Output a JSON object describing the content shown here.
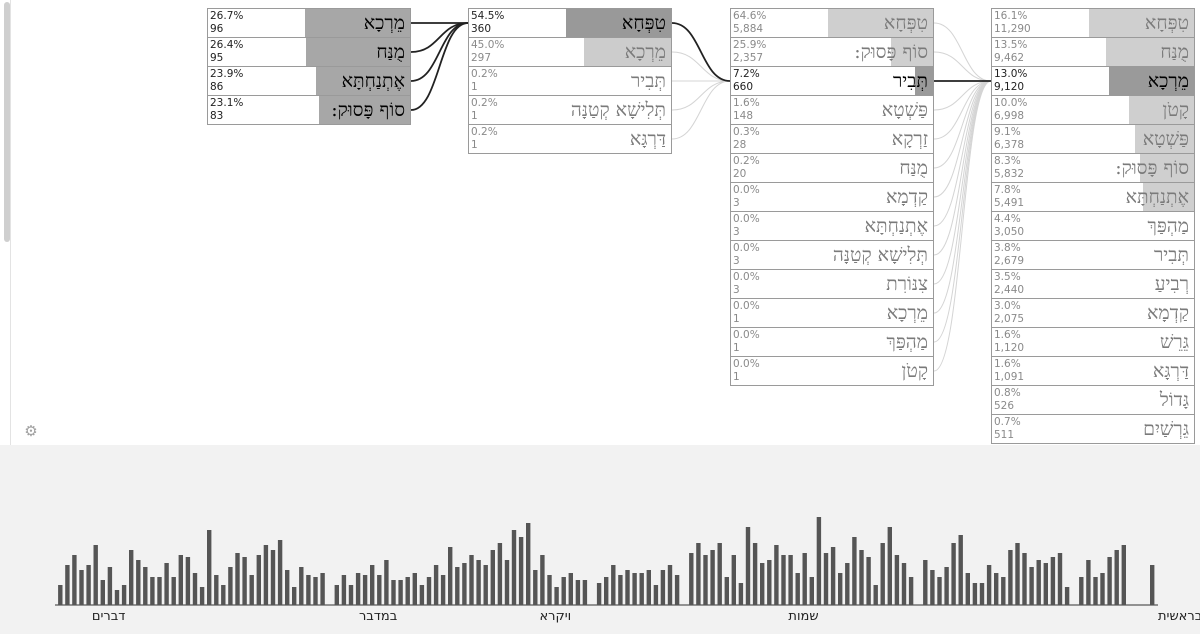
{
  "columns": [
    {
      "id": "col1",
      "cells": [
        {
          "pct": "26.7%",
          "count": "96",
          "word": "מֵרְכָא",
          "share": 0.267,
          "shade": "#a7a7a7"
        },
        {
          "pct": "26.4%",
          "count": "95",
          "word": "מֻנַּח",
          "share": 0.264,
          "shade": "#a7a7a7"
        },
        {
          "pct": "23.9%",
          "count": "86",
          "word": "אֶתְנַחְתָּא",
          "share": 0.239,
          "shade": "#a7a7a7"
        },
        {
          "pct": "23.1%",
          "count": "83",
          "word": "סוֹף פָּסוּק:",
          "share": 0.231,
          "shade": "#a7a7a7"
        }
      ]
    },
    {
      "id": "col2",
      "cells": [
        {
          "pct": "54.5%",
          "count": "360",
          "word": "טִפְּחָא",
          "share": 0.545,
          "shade": "#999999"
        },
        {
          "pct": "45.0%",
          "count": "297",
          "word": "מֵרְכָא",
          "share": 0.45,
          "shade": "#cccccc",
          "faded": true
        },
        {
          "pct": "0.2%",
          "count": "1",
          "word": "תְּבִיר",
          "share": 0.002,
          "shade": "#cccccc",
          "faded": true
        },
        {
          "pct": "0.2%",
          "count": "1",
          "word": "תְּלִישָׁא קְטַנָּה",
          "share": 0.002,
          "shade": "#cccccc",
          "faded": true
        },
        {
          "pct": "0.2%",
          "count": "1",
          "word": "דַּרְגָּא",
          "share": 0.002,
          "shade": "#cccccc",
          "faded": true
        }
      ]
    },
    {
      "id": "col3",
      "cells": [
        {
          "pct": "64.6%",
          "count": "5,884",
          "word": "טִפְּחָא",
          "share": 0.646,
          "shade": "#cfcfcf",
          "faded": true
        },
        {
          "pct": "25.9%",
          "count": "2,357",
          "word": "סוֹף פָּסוּק:",
          "share": 0.259,
          "shade": "#cfcfcf",
          "faded": true
        },
        {
          "pct": "7.2%",
          "count": "660",
          "word": "תְּבִיר",
          "share": 0.072,
          "shade": "#9a9a9a"
        },
        {
          "pct": "1.6%",
          "count": "148",
          "word": "פַּשְׁטָא",
          "share": 0.016,
          "shade": "#cfcfcf",
          "faded": true
        },
        {
          "pct": "0.3%",
          "count": "28",
          "word": "זַרְקָא",
          "share": 0.003,
          "shade": "#cfcfcf",
          "faded": true
        },
        {
          "pct": "0.2%",
          "count": "20",
          "word": "מֻנַּח",
          "share": 0.002,
          "shade": "#cfcfcf",
          "faded": true
        },
        {
          "pct": "0.0%",
          "count": "3",
          "word": "קַדְמָא",
          "share": 0.0,
          "shade": "#cfcfcf",
          "faded": true
        },
        {
          "pct": "0.0%",
          "count": "3",
          "word": "אֶתְנַחְתָּא",
          "share": 0.0,
          "shade": "#cfcfcf",
          "faded": true
        },
        {
          "pct": "0.0%",
          "count": "3",
          "word": "תְּלִישָׁא קְטַנָּה",
          "share": 0.0,
          "shade": "#cfcfcf",
          "faded": true
        },
        {
          "pct": "0.0%",
          "count": "3",
          "word": "צִנּוֹרִת",
          "share": 0.0,
          "shade": "#cfcfcf",
          "faded": true
        },
        {
          "pct": "0.0%",
          "count": "1",
          "word": "מֵרְכָא",
          "share": 0.0,
          "shade": "#cfcfcf",
          "faded": true
        },
        {
          "pct": "0.0%",
          "count": "1",
          "word": "מַהְפַּךְ",
          "share": 0.0,
          "shade": "#cfcfcf",
          "faded": true
        },
        {
          "pct": "0.0%",
          "count": "1",
          "word": "קָטֹן",
          "share": 0.0,
          "shade": "#cfcfcf",
          "faded": true
        }
      ]
    },
    {
      "id": "col4",
      "cells": [
        {
          "pct": "16.1%",
          "count": "11,290",
          "word": "טִפְּחָא",
          "share": 0.161,
          "shade": "#cfcfcf",
          "faded": true
        },
        {
          "pct": "13.5%",
          "count": "9,462",
          "word": "מֻנַּח",
          "share": 0.135,
          "shade": "#cfcfcf",
          "faded": true
        },
        {
          "pct": "13.0%",
          "count": "9,120",
          "word": "מֵרְכָא",
          "share": 0.13,
          "shade": "#9a9a9a"
        },
        {
          "pct": "10.0%",
          "count": "6,998",
          "word": "קָטֹן",
          "share": 0.1,
          "shade": "#cfcfcf",
          "faded": true
        },
        {
          "pct": "9.1%",
          "count": "6,378",
          "word": "פַּשְׁטָא",
          "share": 0.091,
          "shade": "#cfcfcf",
          "faded": true
        },
        {
          "pct": "8.3%",
          "count": "5,832",
          "word": "סוֹף פָּסוּק:",
          "share": 0.083,
          "shade": "#cfcfcf",
          "faded": true
        },
        {
          "pct": "7.8%",
          "count": "5,491",
          "word": "אֶתְנַחְתָּא",
          "share": 0.078,
          "shade": "#cfcfcf",
          "faded": true
        },
        {
          "pct": "4.4%",
          "count": "3,050",
          "word": "מַהְפַּךְ",
          "share": 0.044,
          "shade": "#cfcfcf",
          "faded": true
        },
        {
          "pct": "3.8%",
          "count": "2,679",
          "word": "תְּבִיר",
          "share": 0.038,
          "shade": "#cfcfcf",
          "faded": true
        },
        {
          "pct": "3.5%",
          "count": "2,440",
          "word": "רְבִיעַ",
          "share": 0.035,
          "shade": "#cfcfcf",
          "faded": true
        },
        {
          "pct": "3.0%",
          "count": "2,075",
          "word": "קַדְמָא",
          "share": 0.03,
          "shade": "#cfcfcf",
          "faded": true
        },
        {
          "pct": "1.6%",
          "count": "1,120",
          "word": "גֵּרֵשׁ",
          "share": 0.016,
          "shade": "#cfcfcf",
          "faded": true
        },
        {
          "pct": "1.6%",
          "count": "1,091",
          "word": "דַּרְגָּא",
          "share": 0.016,
          "shade": "#cfcfcf",
          "faded": true
        },
        {
          "pct": "0.8%",
          "count": "526",
          "word": "גָּדוֹל",
          "share": 0.008,
          "shade": "#cfcfcf",
          "faded": true
        },
        {
          "pct": "0.7%",
          "count": "511",
          "word": "גֵּרְשַׁיִם",
          "share": 0.007,
          "shade": "#cfcfcf",
          "faded": true
        }
      ]
    }
  ],
  "links": [
    {
      "from": [
        "col1",
        0
      ],
      "to": [
        "col2",
        0
      ],
      "strong": true
    },
    {
      "from": [
        "col1",
        1
      ],
      "to": [
        "col2",
        0
      ],
      "strong": true
    },
    {
      "from": [
        "col1",
        2
      ],
      "to": [
        "col2",
        0
      ],
      "strong": true
    },
    {
      "from": [
        "col1",
        3
      ],
      "to": [
        "col2",
        0
      ],
      "strong": true
    },
    {
      "from": [
        "col2",
        0
      ],
      "to": [
        "col3",
        2
      ],
      "strong": true
    },
    {
      "from": [
        "col2",
        1
      ],
      "to": [
        "col3",
        2
      ],
      "strong": false
    },
    {
      "from": [
        "col2",
        2
      ],
      "to": [
        "col3",
        2
      ],
      "strong": false
    },
    {
      "from": [
        "col2",
        3
      ],
      "to": [
        "col3",
        2
      ],
      "strong": false
    },
    {
      "from": [
        "col2",
        4
      ],
      "to": [
        "col3",
        2
      ],
      "strong": false
    },
    {
      "from": [
        "col3",
        2
      ],
      "to": [
        "col4",
        2
      ],
      "strong": true
    },
    {
      "from": [
        "col3",
        0
      ],
      "to": [
        "col4",
        2
      ],
      "strong": false
    },
    {
      "from": [
        "col3",
        1
      ],
      "to": [
        "col4",
        2
      ],
      "strong": false
    },
    {
      "from": [
        "col3",
        3
      ],
      "to": [
        "col4",
        2
      ],
      "strong": false
    },
    {
      "from": [
        "col3",
        4
      ],
      "to": [
        "col4",
        2
      ],
      "strong": false
    },
    {
      "from": [
        "col3",
        5
      ],
      "to": [
        "col4",
        2
      ],
      "strong": false
    },
    {
      "from": [
        "col3",
        6
      ],
      "to": [
        "col4",
        2
      ],
      "strong": false
    },
    {
      "from": [
        "col3",
        7
      ],
      "to": [
        "col4",
        2
      ],
      "strong": false
    },
    {
      "from": [
        "col3",
        8
      ],
      "to": [
        "col4",
        2
      ],
      "strong": false
    },
    {
      "from": [
        "col3",
        9
      ],
      "to": [
        "col4",
        2
      ],
      "strong": false
    },
    {
      "from": [
        "col3",
        10
      ],
      "to": [
        "col4",
        2
      ],
      "strong": false
    },
    {
      "from": [
        "col3",
        11
      ],
      "to": [
        "col4",
        2
      ],
      "strong": false
    },
    {
      "from": [
        "col3",
        12
      ],
      "to": [
        "col4",
        2
      ],
      "strong": false
    }
  ],
  "icons": {
    "settings": "gear-icon"
  },
  "colors": {
    "bar_fill": "#555555",
    "panel_bg": "#f2f2f2",
    "axis": "#333333"
  },
  "chart_data": {
    "type": "bar",
    "x_labels_rtl": [
      "בראשית",
      "שמות",
      "ויקרא",
      "במדבר",
      "דברים"
    ],
    "label_anchor_index": [
      0,
      50,
      85,
      110,
      148
    ],
    "values": [
      40,
      0,
      0,
      0,
      60,
      55,
      48,
      32,
      28,
      45,
      28,
      0,
      18,
      52,
      48,
      42,
      45,
      38,
      52,
      62,
      55,
      28,
      32,
      40,
      22,
      22,
      32,
      70,
      62,
      38,
      28,
      35,
      45,
      0,
      28,
      42,
      50,
      78,
      62,
      20,
      48,
      55,
      68,
      42,
      32,
      58,
      52,
      88,
      28,
      52,
      32,
      50,
      50,
      60,
      45,
      42,
      62,
      78,
      22,
      50,
      28,
      62,
      55,
      50,
      62,
      52,
      0,
      30,
      40,
      35,
      20,
      35,
      32,
      32,
      35,
      30,
      40,
      28,
      22,
      0,
      25,
      25,
      32,
      28,
      18,
      30,
      50,
      35,
      82,
      68,
      75,
      45,
      62,
      55,
      40,
      45,
      50,
      42,
      38,
      58,
      30,
      40,
      28,
      20,
      32,
      28,
      25,
      25,
      45,
      30,
      40,
      30,
      32,
      20,
      30,
      20,
      0,
      32,
      28,
      30,
      38,
      18,
      35,
      65,
      55,
      60,
      50,
      30,
      48,
      52,
      38,
      20,
      30,
      75,
      18,
      32,
      48,
      50,
      28,
      42,
      28,
      28,
      38,
      45,
      55,
      20,
      15,
      38,
      25,
      60,
      40,
      35,
      50,
      40,
      20
    ],
    "ylim": [
      0,
      100
    ]
  }
}
